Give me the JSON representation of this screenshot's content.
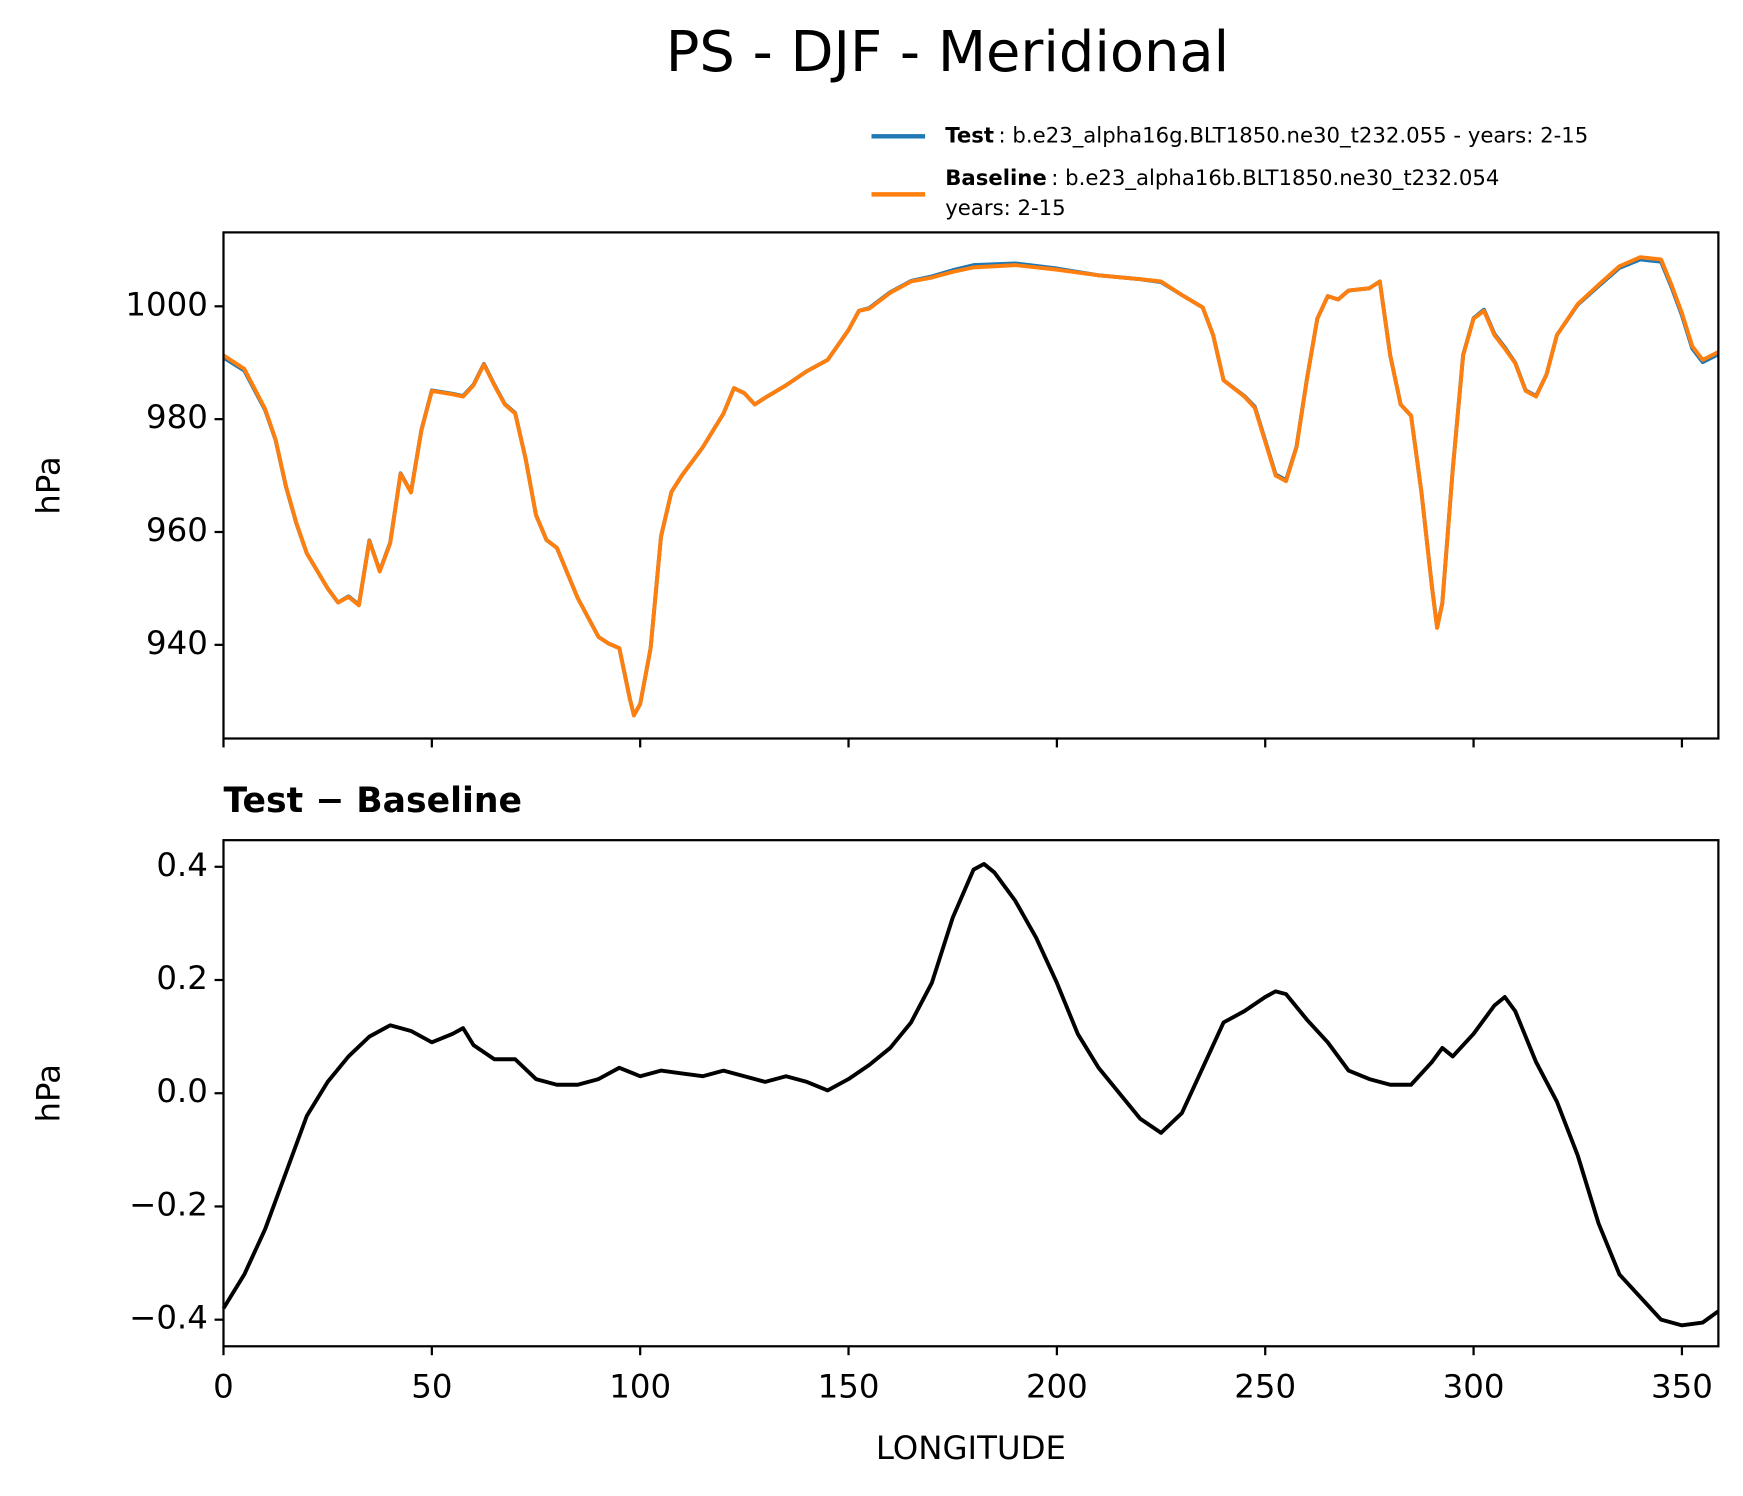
{
  "title": "PS - DJF - Meridional",
  "chart_data": [
    {
      "type": "line",
      "ylabel": "hPa",
      "xlim": [
        0,
        358.75
      ],
      "ylim": [
        923.4,
        1013.1
      ],
      "xticks": [
        0,
        50,
        100,
        150,
        200,
        250,
        300,
        350
      ],
      "yticks": [
        940,
        960,
        980,
        1000
      ],
      "x": [
        0,
        5,
        10,
        12.5,
        15,
        17.5,
        20,
        25,
        27.5,
        30,
        32.5,
        35,
        37.5,
        40,
        42.5,
        45,
        47.5,
        50,
        55,
        57.5,
        60,
        62.5,
        65,
        67.5,
        70,
        72.5,
        75,
        77.5,
        80,
        85,
        90,
        92.5,
        95,
        97.5,
        98.5,
        100,
        102.5,
        105,
        107.5,
        110,
        115,
        120,
        122.5,
        125,
        127.5,
        130,
        135,
        140,
        145,
        150,
        152.5,
        155,
        160,
        165,
        170,
        175,
        180,
        190,
        200,
        210,
        220,
        225,
        230,
        235,
        237.5,
        240,
        245,
        247.5,
        250,
        252.5,
        255,
        257.5,
        260,
        262.5,
        265,
        267.5,
        270,
        275,
        277.5,
        280,
        282.5,
        285,
        287.5,
        290,
        291.25,
        292.5,
        295,
        297.5,
        300,
        302.5,
        305,
        307.5,
        310,
        312.5,
        315,
        317.5,
        320,
        325,
        330,
        335,
        340,
        345,
        347.5,
        350,
        352.5,
        355,
        358.75
      ],
      "series": [
        {
          "name": "Test",
          "description": [
            ": b.e23_alpha16g.BLT1850.ne30_t232.055 - years: 2-15"
          ],
          "color": "#1f77b4",
          "values": [
            990.9,
            988.6,
            981.6,
            976.3,
            968.0,
            961.5,
            956.2,
            950,
            947.5,
            948.6,
            947.1,
            958.5,
            953.1,
            958.1,
            970.4,
            967.1,
            978.1,
            985.1,
            984.5,
            984.1,
            986.1,
            989.8,
            986.1,
            982.7,
            981.1,
            973.0,
            963.0,
            958.6,
            957.2,
            948.3,
            941.4,
            940.2,
            939.4,
            930.5,
            927.5,
            929.5,
            939.4,
            959.2,
            967.1,
            970.0,
            975.0,
            981.0,
            985.5,
            984.6,
            982.6,
            983.8,
            986.0,
            988.5,
            990.5,
            995.8,
            999.2,
            999.7,
            1002.5,
            1004.5,
            1005.3,
            1006.4,
            1007.3,
            1007.6,
            1006.7,
            1005.5,
            1004.8,
            1004.3,
            1002.0,
            999.8,
            994.9,
            986.9,
            984.1,
            982.2,
            976.2,
            970.2,
            969.2,
            975.1,
            987.1,
            997.8,
            1001.8,
            1001.2,
            1002.8,
            1003.2,
            1004.4,
            991.3,
            982.6,
            980.6,
            967.0,
            950.4,
            943.1,
            947.4,
            971.1,
            991.4,
            997.9,
            999.4,
            995.1,
            992.7,
            990.0,
            985.1,
            984.1,
            987.9,
            994.9,
            1000.3,
            1003.6,
            1006.8,
            1008.3,
            1007.9,
            1003.4,
            998.4,
            992.5,
            990.1,
            991.5
          ]
        },
        {
          "name": "Baseline",
          "description": [
            ": b.e23_alpha16b.BLT1850.ne30_t232.054",
            "years: 2-15"
          ],
          "color": "#ff7f0e",
          "values": [
            991.3,
            988.9,
            981.8,
            976.4,
            968.1,
            961.6,
            956.2,
            950,
            947.5,
            948.5,
            947,
            958.4,
            953,
            958,
            970.3,
            967,
            978,
            985,
            984.4,
            984,
            986,
            989.7,
            986,
            982.6,
            981,
            973,
            963,
            958.6,
            957.2,
            948.3,
            941.4,
            940.2,
            939.4,
            930.5,
            927.5,
            929.5,
            939.4,
            959.2,
            967.1,
            970,
            975,
            981,
            985.5,
            984.6,
            982.6,
            983.8,
            986,
            988.5,
            990.5,
            995.8,
            999.2,
            999.6,
            1002.4,
            1004.4,
            1005.1,
            1006.1,
            1006.9,
            1007.3,
            1006.5,
            1005.5,
            1004.8,
            1004.4,
            1002,
            999.8,
            994.9,
            986.9,
            984,
            982,
            976,
            970,
            969,
            975,
            987,
            997.8,
            1001.8,
            1001.2,
            1002.8,
            1003.2,
            1004.4,
            991.3,
            982.6,
            980.6,
            967,
            950.3,
            943,
            947.3,
            971,
            991.3,
            997.8,
            999.2,
            994.9,
            992.5,
            989.9,
            985,
            984,
            987.9,
            994.9,
            1000.4,
            1003.8,
            1007.1,
            1008.7,
            1008.3,
            1003.8,
            998.8,
            992.9,
            990.5,
            991.9
          ]
        }
      ]
    },
    {
      "type": "line",
      "title": "Test − Baseline",
      "ylabel": "hPa",
      "xlabel": "LONGITUDE",
      "xlim": [
        0,
        358.75
      ],
      "ylim": [
        -0.447,
        0.447
      ],
      "xticks": [
        0,
        50,
        100,
        150,
        200,
        250,
        300,
        350
      ],
      "yticks": [
        {
          "value": -0.4,
          "label": "−0.4"
        },
        {
          "value": -0.2,
          "label": "−0.2"
        },
        {
          "value": 0,
          "label": "0.0"
        },
        0.2,
        0.4
      ],
      "x": [
        0,
        5,
        10,
        15,
        20,
        25,
        30,
        35,
        40,
        45,
        50,
        55,
        57.5,
        60,
        65,
        70,
        75,
        80,
        85,
        90,
        95,
        100,
        105,
        110,
        115,
        120,
        125,
        130,
        135,
        140,
        145,
        150,
        155,
        160,
        165,
        170,
        175,
        180,
        182.5,
        185,
        190,
        195,
        200,
        205,
        210,
        215,
        220,
        225,
        230,
        235,
        240,
        245,
        250,
        252.5,
        255,
        260,
        265,
        270,
        275,
        280,
        285,
        290,
        292.5,
        295,
        300,
        305,
        307.5,
        310,
        315,
        320,
        325,
        330,
        335,
        340,
        345,
        350,
        355,
        358.75
      ],
      "series": [
        {
          "color": "#000000",
          "values": [
            -0.38,
            -0.32,
            -0.24,
            -0.14,
            -0.04,
            0.02,
            0.065,
            0.1,
            0.12,
            0.11,
            0.09,
            0.105,
            0.115,
            0.085,
            0.06,
            0.06,
            0.025,
            0.015,
            0.015,
            0.025,
            0.045,
            0.03,
            0.04,
            0.035,
            0.03,
            0.04,
            0.03,
            0.02,
            0.03,
            0.02,
            0.005,
            0.025,
            0.05,
            0.08,
            0.125,
            0.195,
            0.31,
            0.395,
            0.405,
            0.39,
            0.34,
            0.275,
            0.195,
            0.105,
            0.045,
            0,
            -0.045,
            -0.07,
            -0.035,
            0.045,
            0.125,
            0.145,
            0.17,
            0.18,
            0.175,
            0.13,
            0.09,
            0.04,
            0.025,
            0.015,
            0.015,
            0.055,
            0.08,
            0.065,
            0.105,
            0.155,
            0.17,
            0.145,
            0.055,
            -0.015,
            -0.11,
            -0.23,
            -0.32,
            -0.36,
            -0.4,
            -0.41,
            -0.405,
            -0.385
          ]
        }
      ]
    }
  ]
}
